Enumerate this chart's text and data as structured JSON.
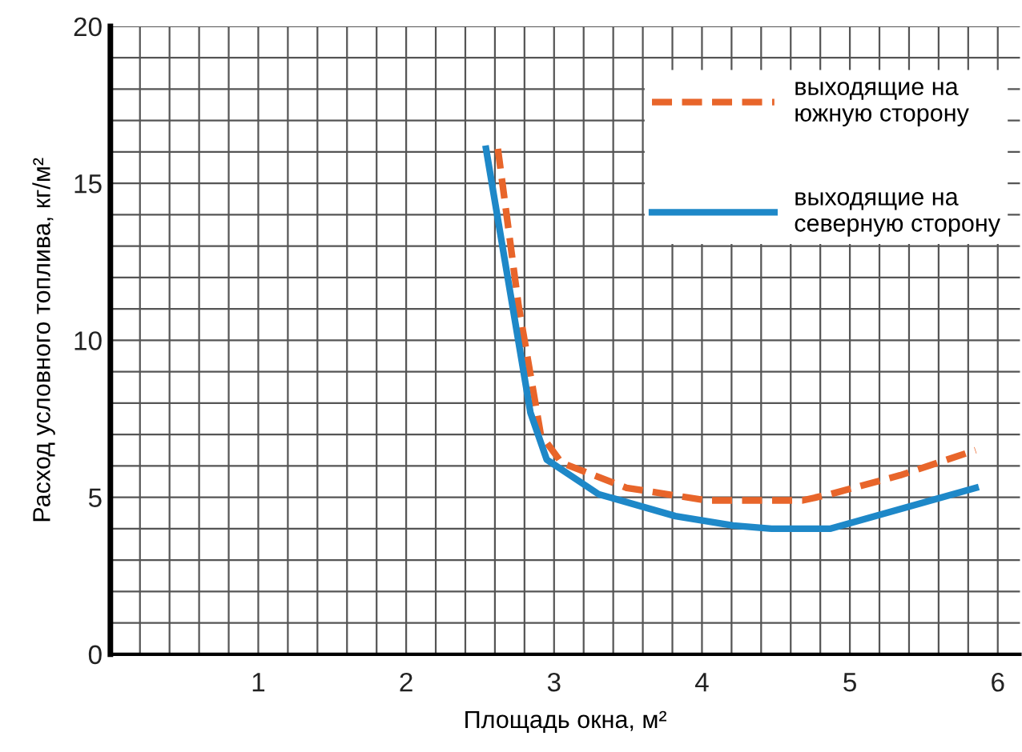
{
  "chart_data": {
    "type": "line",
    "xlabel": "Площадь окна, м²",
    "ylabel": "Расход условного топлива, кг/м²",
    "xlim": [
      0,
      6.15
    ],
    "ylim": [
      0,
      20
    ],
    "xticks": [
      1,
      2,
      3,
      4,
      5,
      6
    ],
    "yticks": [
      0,
      5,
      10,
      15,
      20
    ],
    "grid": true,
    "legend": "top right",
    "series": [
      {
        "name": "выходящие на\nюжную сторону",
        "color": "#e8652a",
        "line_style": "dashed",
        "x": [
          2.62,
          2.76,
          2.91,
          3.05,
          3.49,
          4.03,
          4.68,
          4.87,
          5.34,
          5.85
        ],
        "values": [
          16.1,
          11.1,
          7.0,
          6.1,
          5.3,
          4.9,
          4.9,
          5.1,
          5.7,
          6.5
        ]
      },
      {
        "name": "выходящие на\nсеверную сторону",
        "color": "#1e88c8",
        "line_style": "solid",
        "x": [
          2.54,
          2.84,
          2.95,
          3.3,
          3.82,
          4.21,
          4.47,
          4.87,
          5.85
        ],
        "values": [
          16.1,
          7.7,
          6.2,
          5.1,
          4.4,
          4.1,
          4.0,
          4.0,
          5.3
        ]
      }
    ]
  }
}
